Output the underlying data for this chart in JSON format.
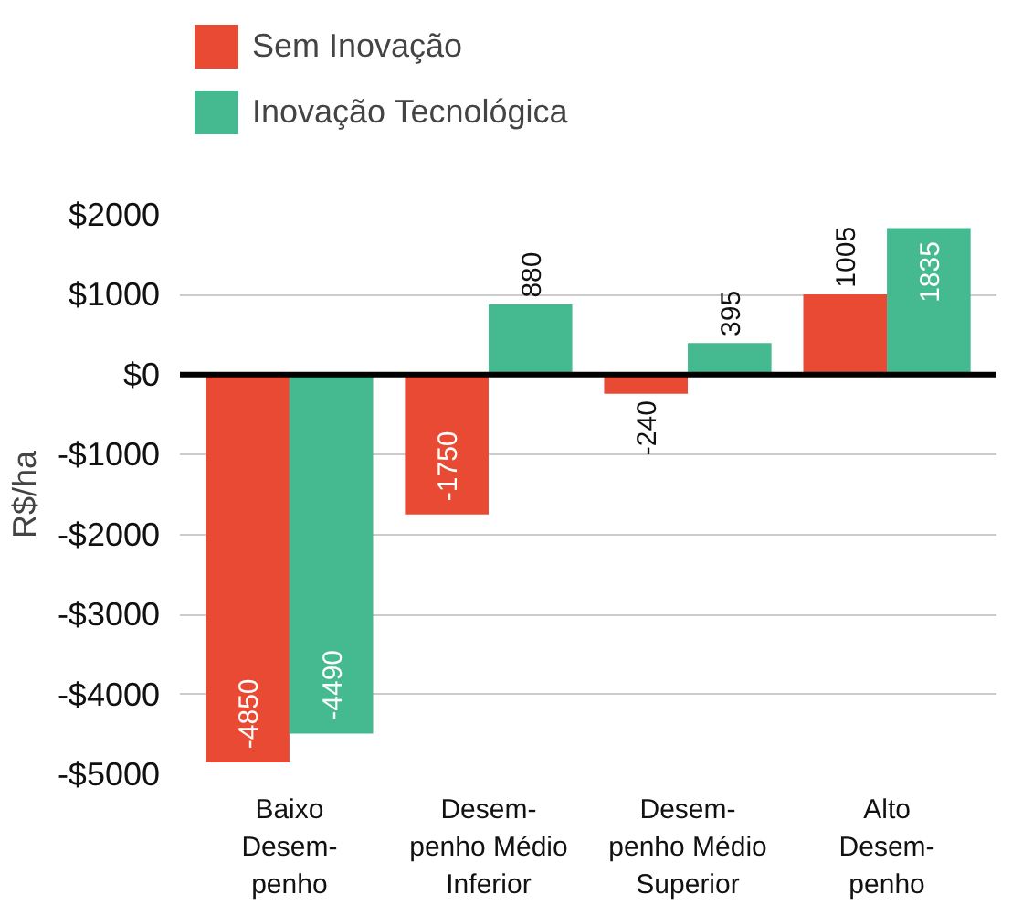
{
  "chart_data": {
    "type": "bar",
    "ylabel": "R$/ha",
    "categories": [
      "Baixo\nDesem-\npenho",
      "Desem-\npenho Médio\nInferior",
      "Desem-\npenho Médio\nSuperior",
      "Alto\nDesem-\npenho"
    ],
    "series": [
      {
        "name": "Sem Inovação",
        "color": "#e84a33",
        "values": [
          -4850,
          -1750,
          -240,
          1005
        ]
      },
      {
        "name": "Inovação Tecnológica",
        "color": "#45b98f",
        "values": [
          -4490,
          880,
          395,
          1835
        ]
      }
    ],
    "ylim": [
      -5000,
      2000
    ],
    "yticks": [
      {
        "value": 2000,
        "label": "$2000"
      },
      {
        "value": 1000,
        "label": "$1000"
      },
      {
        "value": 0,
        "label": "$0"
      },
      {
        "value": -1000,
        "label": "-$1000"
      },
      {
        "value": -2000,
        "label": "-$2000"
      },
      {
        "value": -3000,
        "label": "-$3000"
      },
      {
        "value": -4000,
        "label": "-$4000"
      },
      {
        "value": -5000,
        "label": "-$5000"
      }
    ],
    "grid": "y",
    "legend": "top left",
    "data_labels": true
  }
}
